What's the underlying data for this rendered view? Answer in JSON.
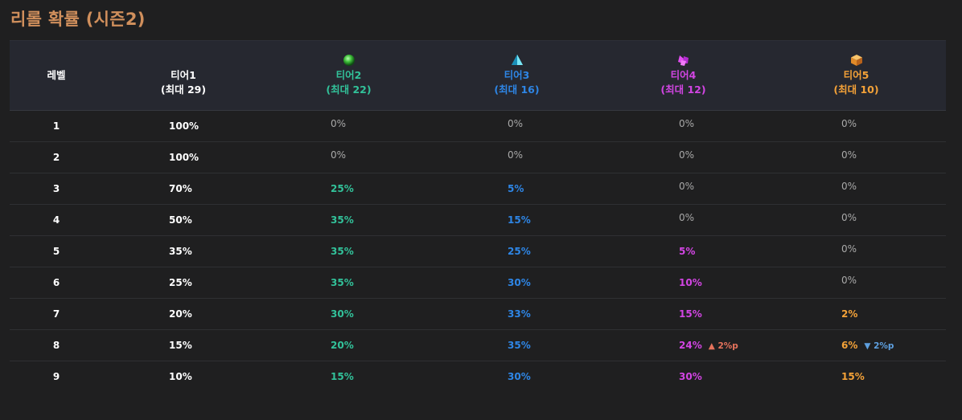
{
  "page": {
    "title": "리롤 확률 (시즌2)"
  },
  "header": {
    "level": "레벨",
    "tiers": [
      {
        "name": "티어1",
        "max": "(최대 29)",
        "icon": "none"
      },
      {
        "name": "티어2",
        "max": "(최대 22)",
        "icon": "green-orb-icon",
        "color": "#32c29a"
      },
      {
        "name": "티어3",
        "max": "(최대 16)",
        "icon": "blue-pyramid-icon",
        "color": "#2e86e6"
      },
      {
        "name": "티어4",
        "max": "(최대 12)",
        "icon": "purple-crystal-icon",
        "color": "#d245e3"
      },
      {
        "name": "티어5",
        "max": "(최대 10)",
        "icon": "orange-box-icon",
        "color": "#f4a238"
      }
    ]
  },
  "rows": [
    {
      "level": "1",
      "t1": "100%",
      "t2": "0%",
      "t3": "0%",
      "t4": "0%",
      "t5": "0%"
    },
    {
      "level": "2",
      "t1": "100%",
      "t2": "0%",
      "t3": "0%",
      "t4": "0%",
      "t5": "0%"
    },
    {
      "level": "3",
      "t1": "70%",
      "t2": "25%",
      "t3": "5%",
      "t4": "0%",
      "t5": "0%"
    },
    {
      "level": "4",
      "t1": "50%",
      "t2": "35%",
      "t3": "15%",
      "t4": "0%",
      "t5": "0%"
    },
    {
      "level": "5",
      "t1": "35%",
      "t2": "35%",
      "t3": "25%",
      "t4": "5%",
      "t5": "0%"
    },
    {
      "level": "6",
      "t1": "25%",
      "t2": "35%",
      "t3": "30%",
      "t4": "10%",
      "t5": "0%"
    },
    {
      "level": "7",
      "t1": "20%",
      "t2": "30%",
      "t3": "33%",
      "t4": "15%",
      "t5": "2%"
    },
    {
      "level": "8",
      "t1": "15%",
      "t2": "20%",
      "t3": "35%",
      "t4": "24%",
      "t4_diff": "▲ 2%p",
      "t5": "6%",
      "t5_diff": "▼ 2%p"
    },
    {
      "level": "9",
      "t1": "10%",
      "t2": "15%",
      "t3": "30%",
      "t4": "30%",
      "t5": "15%"
    }
  ]
}
